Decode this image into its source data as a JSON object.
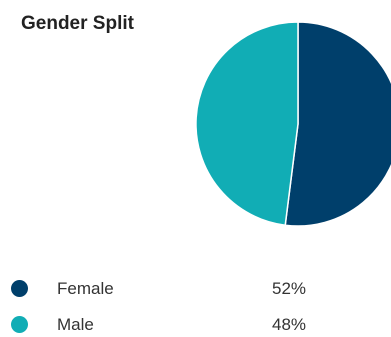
{
  "chart_data": {
    "type": "pie",
    "title": "Gender Split",
    "categories": [
      "Female",
      "Male"
    ],
    "values": [
      52,
      48
    ],
    "value_labels": [
      "52%",
      "48%"
    ],
    "colors": [
      "#003f6b",
      "#11adb5"
    ],
    "legend_position": "bottom",
    "start_angle": "top",
    "direction": "clockwise"
  }
}
